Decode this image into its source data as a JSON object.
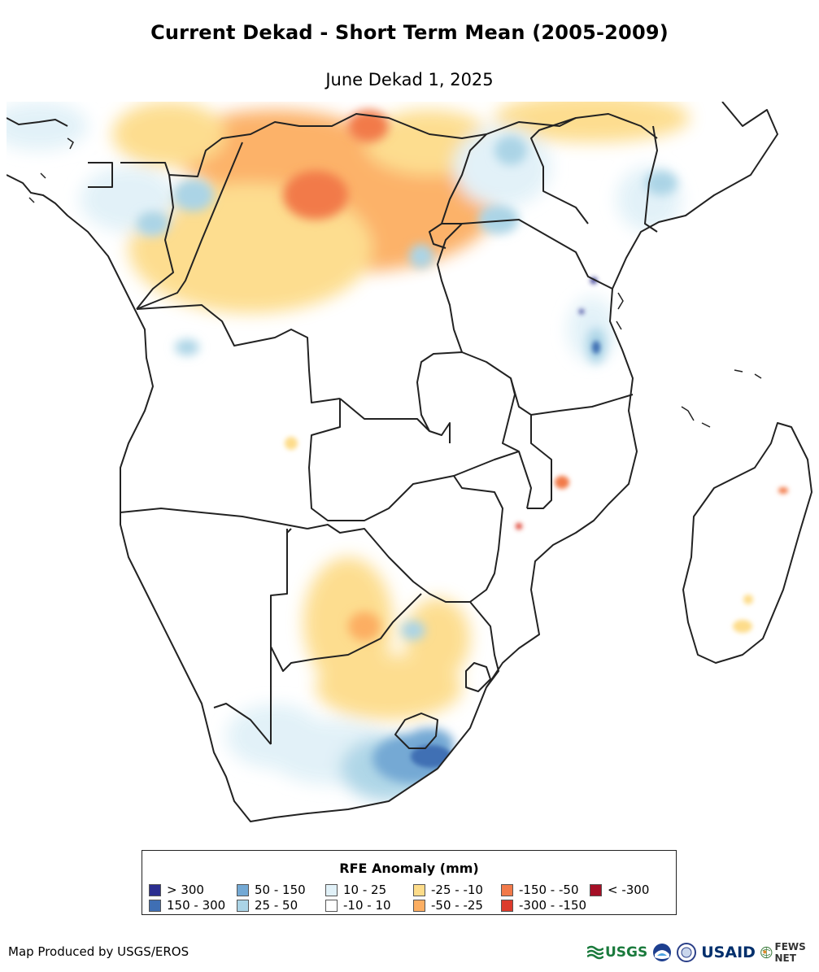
{
  "title": "Current Dekad - Short Term Mean (2005-2009)",
  "subtitle": "June Dekad 1, 2025",
  "legend": {
    "title": "RFE Anomaly (mm)",
    "items": [
      {
        "label": "> 300",
        "color": "#2b2e8f"
      },
      {
        "label": "150 - 300",
        "color": "#3f6fb4"
      },
      {
        "label": "50 - 150",
        "color": "#74a9d4"
      },
      {
        "label": "25 - 50",
        "color": "#abd4e6"
      },
      {
        "label": "10 - 25",
        "color": "#e1f1f8"
      },
      {
        "label": "-10 - 10",
        "color": "#ffffff"
      },
      {
        "label": "-25 - -10",
        "color": "#fddc8a"
      },
      {
        "label": "-50 - -25",
        "color": "#fcae62"
      },
      {
        "label": "-150 - -50",
        "color": "#f27a4a"
      },
      {
        "label": "-300 - -150",
        "color": "#dc3b2c"
      },
      {
        "label": "< -300",
        "color": "#a50f26"
      }
    ]
  },
  "credit": "Map Produced by USGS/EROS",
  "logos": {
    "usgs": "USGS",
    "usaid": "USAID",
    "fewsnet": "FEWS NET"
  }
}
